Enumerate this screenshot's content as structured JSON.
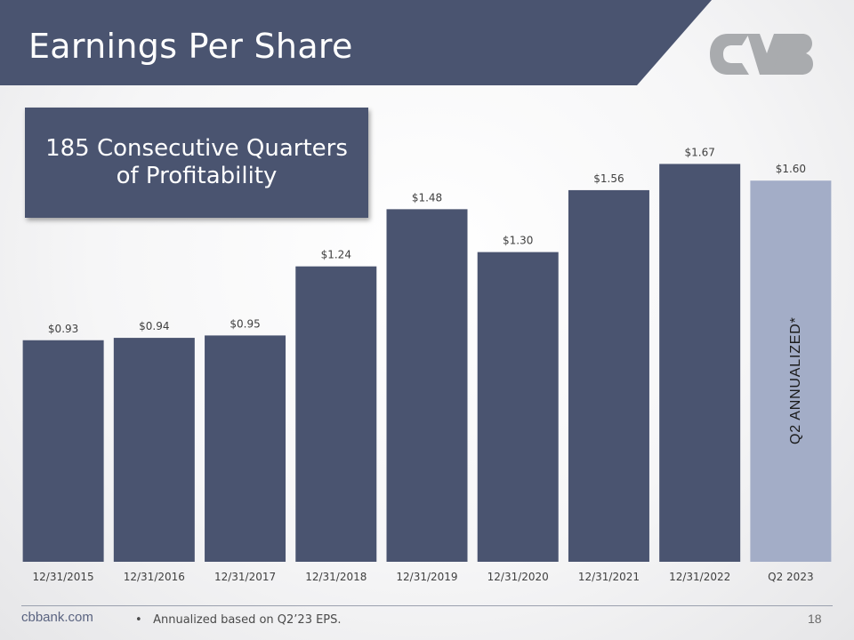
{
  "header": {
    "title": "Earnings Per Share"
  },
  "logo": {
    "name": "cvb-logo-icon",
    "color": "#a9abae"
  },
  "callout": {
    "line1": "185 Consecutive Quarters",
    "line2": "of Profitability"
  },
  "chart_data": {
    "type": "bar",
    "title": "",
    "xlabel": "",
    "ylabel": "",
    "ylim": [
      0,
      1.9
    ],
    "grid": false,
    "categories": [
      "12/31/2015",
      "12/31/2016",
      "12/31/2017",
      "12/31/2018",
      "12/31/2019",
      "12/31/2020",
      "12/31/2021",
      "12/31/2022",
      "Q2 2023"
    ],
    "values": [
      0.93,
      0.94,
      0.95,
      1.24,
      1.48,
      1.3,
      1.56,
      1.67,
      1.6
    ],
    "data_labels": [
      "$0.93",
      "$0.94",
      "$0.95",
      "$1.24",
      "$1.48",
      "$1.30",
      "$1.56",
      "$1.67",
      "$1.60"
    ],
    "colors": [
      "#4a5470",
      "#4a5470",
      "#4a5470",
      "#4a5470",
      "#4a5470",
      "#4a5470",
      "#4a5470",
      "#4a5470",
      "#a3adc7"
    ],
    "annotation": {
      "text": "Q2 ANNUALIZED*",
      "category": "Q2 2023"
    }
  },
  "footer": {
    "site": "cbbank.com",
    "bullet": "•",
    "note": "Annualized based on Q2’23 EPS.",
    "page_number": "18"
  }
}
